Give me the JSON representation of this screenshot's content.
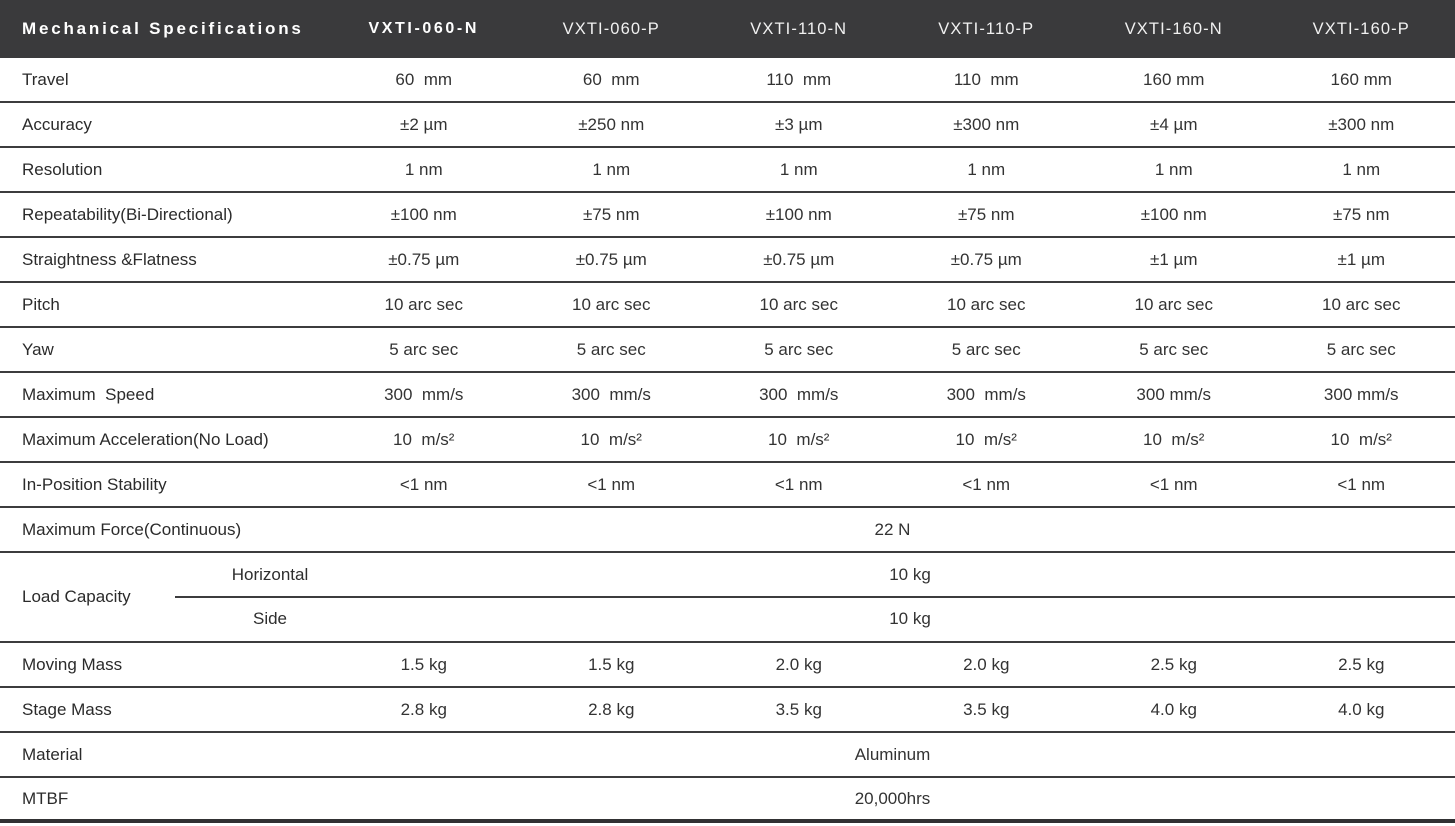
{
  "colors": {
    "header_background": "#3a3a3c",
    "header_text": "#ffffff",
    "body_text": "#2e2e2e",
    "separator_line": "#3c3c3e"
  },
  "header": {
    "title": "Mechanical Specifications",
    "columns": [
      "VXTI-060-N",
      "VXTI-060-P",
      "VXTI-110-N",
      "VXTI-110-P",
      "VXTI-160-N",
      "VXTI-160-P"
    ]
  },
  "rows": [
    {
      "label": "Travel",
      "values": [
        "60  mm",
        "60  mm",
        "110  mm",
        "110  mm",
        "160 mm",
        "160 mm"
      ]
    },
    {
      "label": "Accuracy",
      "values": [
        "±2 µm",
        "±250 nm",
        "±3 µm",
        "±300 nm",
        "±4 µm",
        "±300 nm"
      ]
    },
    {
      "label": "Resolution",
      "values": [
        "1 nm",
        "1 nm",
        "1 nm",
        "1 nm",
        "1 nm",
        "1 nm"
      ]
    },
    {
      "label": "Repeatability(Bi-Directional)",
      "values": [
        "±100 nm",
        "±75 nm",
        "±100 nm",
        "±75 nm",
        "±100 nm",
        "±75 nm"
      ]
    },
    {
      "label": "Straightness &Flatness",
      "values": [
        "±0.75 µm",
        "±0.75 µm",
        "±0.75 µm",
        "±0.75 µm",
        "±1 µm",
        "±1 µm"
      ]
    },
    {
      "label": "Pitch",
      "values": [
        "10 arc sec",
        "10 arc sec",
        "10 arc sec",
        "10 arc sec",
        "10 arc sec",
        "10 arc sec"
      ]
    },
    {
      "label": "Yaw",
      "values": [
        "5 arc sec",
        "5 arc sec",
        "5 arc sec",
        "5 arc sec",
        "5 arc sec",
        "5 arc sec"
      ]
    },
    {
      "label": "Maximum  Speed",
      "values": [
        "300  mm/s",
        "300  mm/s",
        "300  mm/s",
        "300  mm/s",
        "300 mm/s",
        "300 mm/s"
      ]
    },
    {
      "label": "Maximum Acceleration(No Load)",
      "values": [
        "10  m/s²",
        "10  m/s²",
        "10  m/s²",
        "10  m/s²",
        "10  m/s²",
        "10  m/s²"
      ]
    },
    {
      "label": "In-Position Stability",
      "values": [
        "<1 nm",
        "<1 nm",
        "<1 nm",
        "<1 nm",
        "<1 nm",
        "<1 nm"
      ]
    },
    {
      "label": "Maximum Force(Continuous)",
      "span_value": "22 N"
    },
    {
      "label": "Load Capacity",
      "sub_rows": [
        {
          "label": "Horizontal",
          "value": "10 kg"
        },
        {
          "label": "Side",
          "value": "10 kg"
        }
      ]
    },
    {
      "label": "Moving Mass",
      "values": [
        "1.5 kg",
        "1.5 kg",
        "2.0 kg",
        "2.0 kg",
        "2.5 kg",
        "2.5 kg"
      ]
    },
    {
      "label": "Stage Mass",
      "values": [
        "2.8 kg",
        "2.8 kg",
        "3.5 kg",
        "3.5 kg",
        "4.0 kg",
        "4.0 kg"
      ]
    },
    {
      "label": "Material",
      "span_value": "Aluminum"
    },
    {
      "label": "MTBF",
      "span_value": "20,000hrs"
    }
  ]
}
